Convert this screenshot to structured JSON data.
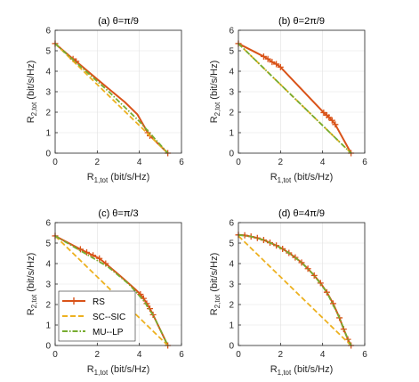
{
  "figure": {
    "background": "#ffffff"
  },
  "legend": {
    "placement": "bottom-left of panel (c)",
    "entries": [
      {
        "label": "RS",
        "color": "#d95319",
        "style": "solid-plus"
      },
      {
        "label": "SC--SIC",
        "color": "#edb120",
        "style": "dashed"
      },
      {
        "label": "MU--LP",
        "color": "#77ac30",
        "style": "dash-dot"
      }
    ]
  },
  "chart_data": [
    {
      "type": "line",
      "title": "(a) θ=π/9",
      "xlabel": {
        "main": "R",
        "sub": "1,tot",
        "unit": " (bit/s/Hz)"
      },
      "ylabel": {
        "main": "R",
        "sub": "2,tot",
        "unit": " (bit/s/Hz)"
      },
      "xlim": [
        0,
        6
      ],
      "ylim": [
        0,
        6
      ],
      "xticks": [
        0,
        2,
        4,
        6
      ],
      "yticks": [
        0,
        1,
        2,
        3,
        4,
        5,
        6
      ],
      "grid": true,
      "series": [
        {
          "name": "RS",
          "color": "#d95319",
          "style": "solid-plus",
          "points": [
            [
              0,
              5.35
            ],
            [
              0.85,
              4.6
            ],
            [
              1.0,
              4.48
            ],
            [
              1.8,
              3.78
            ],
            [
              2.5,
              3.18
            ],
            [
              3.3,
              2.5
            ],
            [
              3.9,
              1.9
            ],
            [
              4.4,
              1.0
            ],
            [
              4.5,
              0.85
            ],
            [
              5.35,
              0
            ]
          ],
          "markers": [
            [
              0,
              5.35
            ],
            [
              0.85,
              4.6
            ],
            [
              1.0,
              4.48
            ],
            [
              4.4,
              1.0
            ],
            [
              4.5,
              0.85
            ],
            [
              5.35,
              0
            ]
          ]
        },
        {
          "name": "SC--SIC",
          "color": "#edb120",
          "style": "dashed",
          "points": [
            [
              0,
              5.35
            ],
            [
              5.35,
              0
            ]
          ]
        },
        {
          "name": "MU--LP",
          "color": "#77ac30",
          "style": "dash-dot",
          "points": [
            [
              0,
              5.35
            ],
            [
              1.0,
              4.42
            ],
            [
              2.5,
              3.05
            ],
            [
              4.0,
              1.55
            ],
            [
              5.35,
              0
            ]
          ]
        }
      ]
    },
    {
      "type": "line",
      "title": "(b) θ=2π/9",
      "xlabel": {
        "main": "R",
        "sub": "1,tot",
        "unit": " (bit/s/Hz)"
      },
      "ylabel": {
        "main": "R",
        "sub": "2,tot",
        "unit": " (bit/s/Hz)"
      },
      "xlim": [
        0,
        6
      ],
      "ylim": [
        0,
        6
      ],
      "xticks": [
        0,
        2,
        4,
        6
      ],
      "yticks": [
        0,
        1,
        2,
        3,
        4,
        5,
        6
      ],
      "grid": true,
      "series": [
        {
          "name": "RS",
          "color": "#d95319",
          "style": "solid-plus",
          "points": [
            [
              0,
              5.35
            ],
            [
              1.2,
              4.72
            ],
            [
              1.4,
              4.6
            ],
            [
              1.6,
              4.45
            ],
            [
              1.8,
              4.35
            ],
            [
              2.0,
              4.2
            ],
            [
              4.05,
              1.98
            ],
            [
              4.2,
              1.85
            ],
            [
              4.3,
              1.75
            ],
            [
              4.45,
              1.6
            ],
            [
              4.6,
              1.4
            ],
            [
              5.35,
              0
            ]
          ],
          "markers": [
            [
              0,
              5.35
            ],
            [
              1.2,
              4.72
            ],
            [
              1.4,
              4.6
            ],
            [
              1.6,
              4.45
            ],
            [
              1.8,
              4.35
            ],
            [
              2.0,
              4.2
            ],
            [
              4.05,
              1.98
            ],
            [
              4.2,
              1.85
            ],
            [
              4.3,
              1.75
            ],
            [
              4.45,
              1.6
            ],
            [
              4.6,
              1.4
            ],
            [
              5.35,
              0
            ]
          ]
        },
        {
          "name": "SC--SIC",
          "color": "#edb120",
          "style": "dashed",
          "points": [
            [
              0,
              5.35
            ],
            [
              5.35,
              0
            ]
          ]
        },
        {
          "name": "MU--LP",
          "color": "#77ac30",
          "style": "dash-dot",
          "points": [
            [
              0,
              5.35
            ],
            [
              2.0,
              3.35
            ],
            [
              4.0,
              1.35
            ],
            [
              5.35,
              0
            ]
          ]
        }
      ]
    },
    {
      "type": "line",
      "title": "(c) θ=π/3",
      "xlabel": {
        "main": "R",
        "sub": "1,tot",
        "unit": " (bit/s/Hz)"
      },
      "ylabel": {
        "main": "R",
        "sub": "2,tot",
        "unit": " (bit/s/Hz)"
      },
      "xlim": [
        0,
        6
      ],
      "ylim": [
        0,
        6
      ],
      "xticks": [
        0,
        2,
        4,
        6
      ],
      "yticks": [
        0,
        1,
        2,
        3,
        4,
        5,
        6
      ],
      "grid": true,
      "series": [
        {
          "name": "RS",
          "color": "#d95319",
          "style": "solid-plus",
          "points": [
            [
              0,
              5.35
            ],
            [
              1.2,
              4.7
            ],
            [
              1.5,
              4.55
            ],
            [
              1.8,
              4.4
            ],
            [
              2.1,
              4.25
            ],
            [
              2.4,
              4.0
            ],
            [
              3.2,
              3.3
            ],
            [
              3.8,
              2.75
            ],
            [
              4.05,
              2.5
            ],
            [
              4.2,
              2.3
            ],
            [
              4.35,
              2.05
            ],
            [
              4.5,
              1.8
            ],
            [
              4.65,
              1.5
            ],
            [
              5.35,
              0
            ]
          ],
          "markers": [
            [
              0,
              5.35
            ],
            [
              1.2,
              4.7
            ],
            [
              1.5,
              4.55
            ],
            [
              1.8,
              4.4
            ],
            [
              2.1,
              4.25
            ],
            [
              2.4,
              4.0
            ],
            [
              4.05,
              2.5
            ],
            [
              4.2,
              2.3
            ],
            [
              4.35,
              2.05
            ],
            [
              4.5,
              1.8
            ],
            [
              4.65,
              1.5
            ],
            [
              5.35,
              0
            ]
          ]
        },
        {
          "name": "SC--SIC",
          "color": "#edb120",
          "style": "dashed",
          "points": [
            [
              0,
              5.35
            ],
            [
              5.35,
              0
            ]
          ]
        },
        {
          "name": "MU--LP",
          "color": "#77ac30",
          "style": "dash-dot",
          "points": [
            [
              0,
              5.35
            ],
            [
              1.5,
              4.45
            ],
            [
              2.5,
              3.85
            ],
            [
              3.5,
              3.0
            ],
            [
              4.2,
              2.2
            ],
            [
              4.7,
              1.4
            ],
            [
              5.35,
              0
            ]
          ]
        }
      ]
    },
    {
      "type": "line",
      "title": "(d) θ=4π/9",
      "xlabel": {
        "main": "R",
        "sub": "1,tot",
        "unit": " (bit/s/Hz)"
      },
      "ylabel": {
        "main": "R",
        "sub": "2,tot",
        "unit": " (bit/s/Hz)"
      },
      "xlim": [
        0,
        6
      ],
      "ylim": [
        0,
        6
      ],
      "xticks": [
        0,
        2,
        4,
        6
      ],
      "yticks": [
        0,
        1,
        2,
        3,
        4,
        5,
        6
      ],
      "grid": true,
      "series": [
        {
          "name": "RS",
          "color": "#d95319",
          "style": "solid-plus",
          "points": [
            [
              0,
              5.4
            ],
            [
              0.3,
              5.38
            ],
            [
              0.6,
              5.32
            ],
            [
              0.9,
              5.25
            ],
            [
              1.2,
              5.15
            ],
            [
              1.5,
              5.02
            ],
            [
              1.8,
              4.88
            ],
            [
              2.1,
              4.72
            ],
            [
              2.4,
              4.52
            ],
            [
              2.7,
              4.3
            ],
            [
              3.0,
              4.05
            ],
            [
              3.3,
              3.75
            ],
            [
              3.6,
              3.42
            ],
            [
              3.9,
              3.05
            ],
            [
              4.2,
              2.6
            ],
            [
              4.5,
              2.05
            ],
            [
              4.8,
              1.35
            ],
            [
              5.0,
              0.8
            ],
            [
              5.2,
              0.3
            ],
            [
              5.35,
              0
            ]
          ],
          "markers": [
            [
              0,
              5.4
            ],
            [
              0.3,
              5.38
            ],
            [
              0.6,
              5.32
            ],
            [
              0.9,
              5.25
            ],
            [
              1.2,
              5.15
            ],
            [
              1.5,
              5.02
            ],
            [
              1.8,
              4.88
            ],
            [
              2.1,
              4.72
            ],
            [
              2.4,
              4.52
            ],
            [
              2.7,
              4.3
            ],
            [
              3.0,
              4.05
            ],
            [
              3.3,
              3.75
            ],
            [
              3.6,
              3.42
            ],
            [
              3.9,
              3.05
            ],
            [
              4.2,
              2.6
            ],
            [
              4.5,
              2.05
            ],
            [
              4.8,
              1.35
            ],
            [
              5.0,
              0.8
            ],
            [
              5.2,
              0.3
            ],
            [
              5.35,
              0
            ]
          ]
        },
        {
          "name": "SC--SIC",
          "color": "#edb120",
          "style": "dashed",
          "points": [
            [
              0,
              5.35
            ],
            [
              5.35,
              0
            ]
          ]
        },
        {
          "name": "MU--LP",
          "color": "#77ac30",
          "style": "dash-dot",
          "points": [
            [
              0,
              5.4
            ],
            [
              0.6,
              5.32
            ],
            [
              1.2,
              5.15
            ],
            [
              1.8,
              4.88
            ],
            [
              2.4,
              4.52
            ],
            [
              3.0,
              4.05
            ],
            [
              3.6,
              3.42
            ],
            [
              4.2,
              2.6
            ],
            [
              4.8,
              1.35
            ],
            [
              5.2,
              0.3
            ],
            [
              5.35,
              0
            ]
          ]
        }
      ]
    }
  ]
}
